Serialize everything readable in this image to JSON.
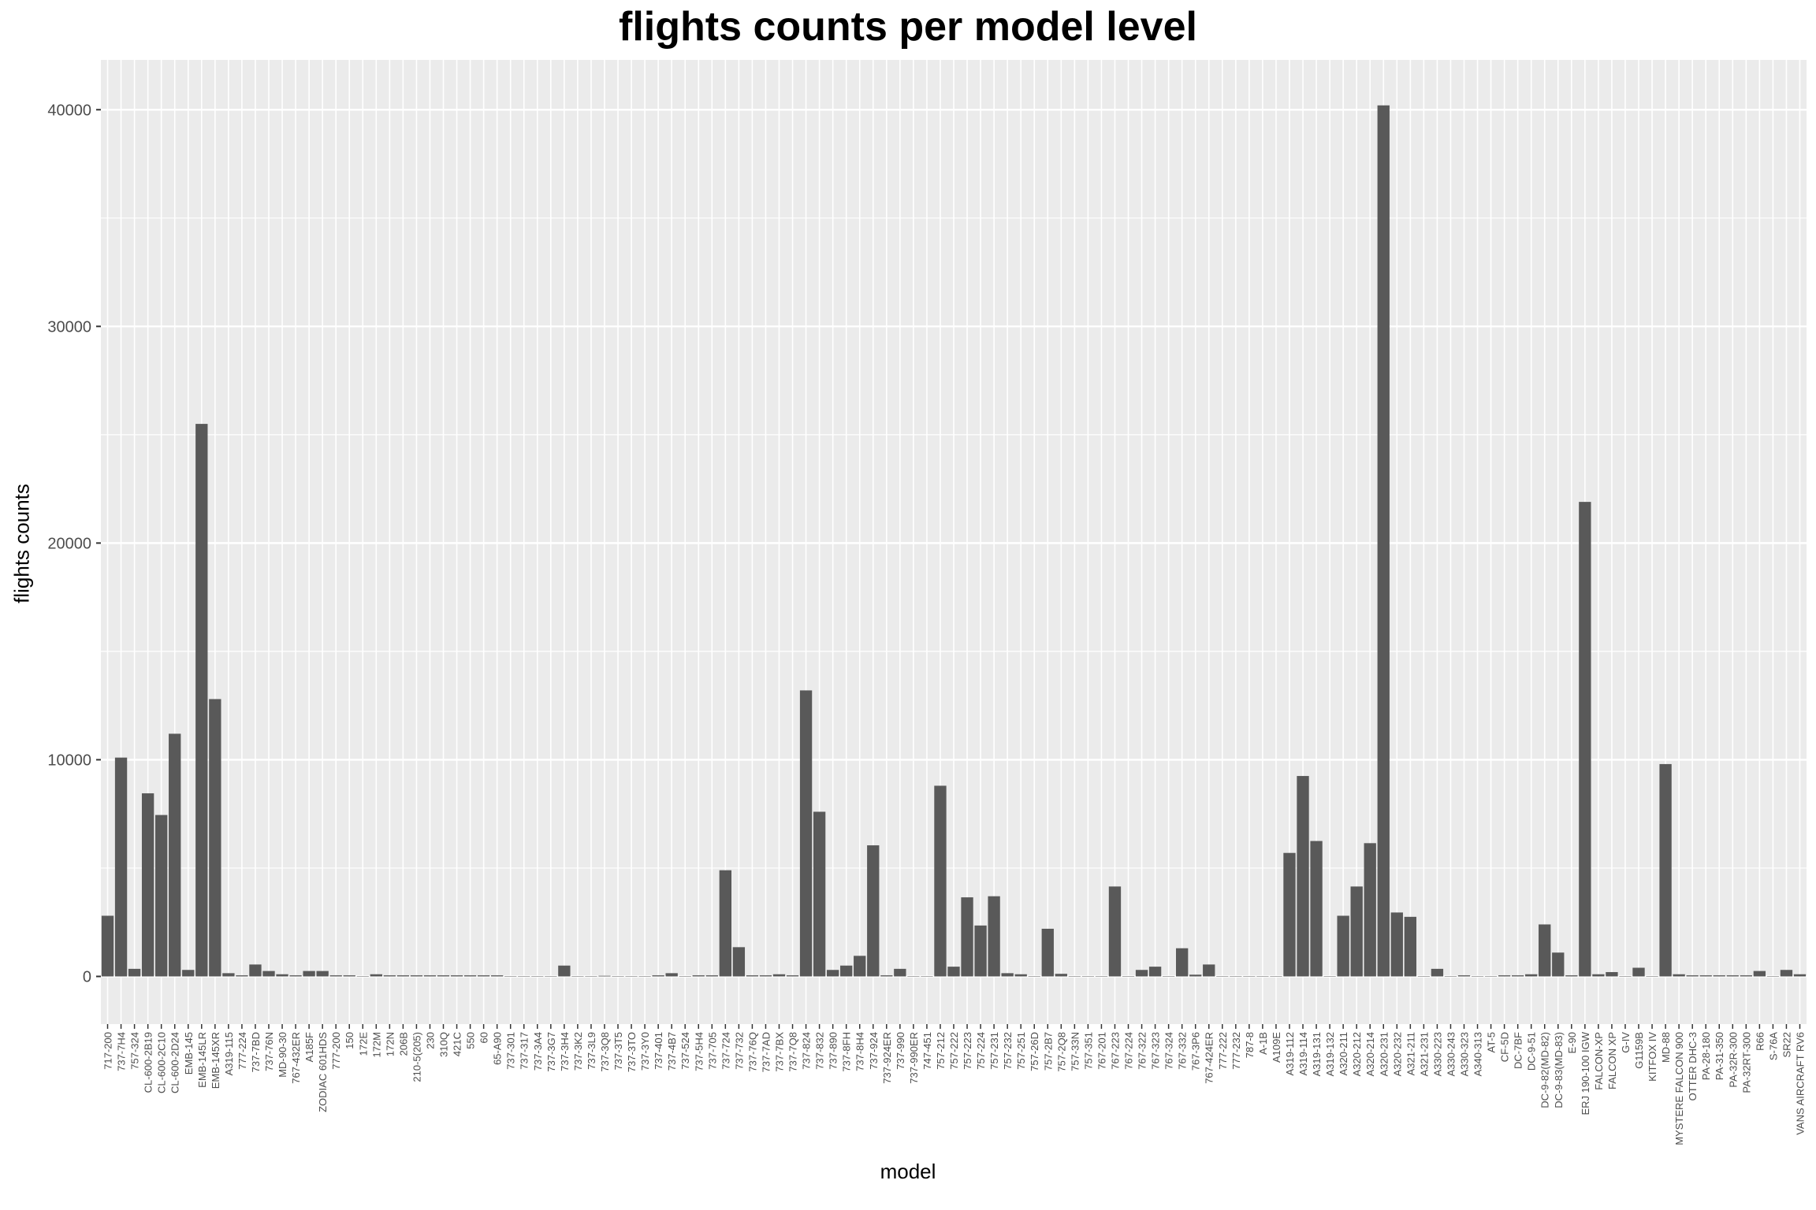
{
  "chart_data": {
    "type": "bar",
    "title": "flights counts per model level",
    "xlabel": "model",
    "ylabel": "flights counts",
    "ylim": [
      -2200,
      42300
    ],
    "yticks": [
      0,
      10000,
      20000,
      30000,
      40000
    ],
    "grid": true,
    "bar_color": "#595959",
    "panel_color": "#EBEBEB",
    "categories": [
      "717-200",
      "737-7H4",
      "757-324",
      "CL-600-2B19",
      "CL-600-2C10",
      "CL-600-2D24",
      "EMB-145",
      "EMB-145LR",
      "EMB-145XR",
      "A319-115",
      "777-224",
      "737-7BD",
      "737-76N",
      "MD-90-30",
      "767-432ER",
      "A185F",
      "ZODIAC 601HDS",
      "777-200",
      "150",
      "172E",
      "172M",
      "172N",
      "206B",
      "210-5(205)",
      "230",
      "310Q",
      "421C",
      "550",
      "60",
      "65-A90",
      "737-301",
      "737-317",
      "737-3A4",
      "737-3G7",
      "737-3H4",
      "737-3K2",
      "737-3L9",
      "737-3Q8",
      "737-3T5",
      "737-3TO",
      "737-3Y0",
      "737-401",
      "737-4B7",
      "737-524",
      "737-5H4",
      "737-705",
      "737-724",
      "737-732",
      "737-76Q",
      "737-7AD",
      "737-7BX",
      "737-7Q8",
      "737-824",
      "737-832",
      "737-890",
      "737-8FH",
      "737-8H4",
      "737-924",
      "737-924ER",
      "737-990",
      "737-990ER",
      "747-451",
      "757-212",
      "757-222",
      "757-223",
      "757-224",
      "757-231",
      "757-232",
      "757-251",
      "757-26D",
      "757-2B7",
      "757-2Q8",
      "757-33N",
      "757-351",
      "767-201",
      "767-223",
      "767-224",
      "767-322",
      "767-323",
      "767-324",
      "767-332",
      "767-3P6",
      "767-424ER",
      "777-222",
      "777-232",
      "787-8",
      "A-1B",
      "A109E",
      "A319-112",
      "A319-114",
      "A319-131",
      "A319-132",
      "A320-211",
      "A320-212",
      "A320-214",
      "A320-231",
      "A320-232",
      "A321-211",
      "A321-231",
      "A330-223",
      "A330-243",
      "A330-323",
      "A340-313",
      "AT-5",
      "CF-5D",
      "DC-7BF",
      "DC-9-51",
      "DC-9-82(MD-82)",
      "DC-9-83(MD-83)",
      "E-90",
      "ERJ 190-100 IGW",
      "FALCON-XP",
      "FALCON XP",
      "G-IV",
      "G1159B",
      "KITFOX IV",
      "MD-88",
      "MYSTERE FALCON 900",
      "OTTER DHC-3",
      "PA-28-180",
      "PA-31-350",
      "PA-32R-300",
      "PA-32RT-300",
      "R66",
      "S-76A",
      "SR22",
      "VANS AIRCRAFT RV6"
    ],
    "values": [
      2800,
      10100,
      350,
      8450,
      7450,
      11200,
      300,
      25500,
      12800,
      150,
      50,
      550,
      250,
      100,
      50,
      250,
      250,
      50,
      50,
      10,
      100,
      50,
      50,
      50,
      50,
      50,
      50,
      50,
      50,
      50,
      10,
      10,
      10,
      10,
      500,
      10,
      10,
      30,
      10,
      10,
      10,
      50,
      150,
      10,
      50,
      50,
      4900,
      1350,
      50,
      50,
      100,
      50,
      13200,
      7600,
      300,
      500,
      950,
      6050,
      50,
      350,
      10,
      10,
      8800,
      450,
      3650,
      2350,
      3700,
      150,
      100,
      10,
      2200,
      120,
      10,
      10,
      10,
      4150,
      10,
      300,
      450,
      10,
      1300,
      80,
      550,
      10,
      10,
      10,
      10,
      10,
      5700,
      9250,
      6250,
      10,
      2800,
      4150,
      6150,
      40200,
      2950,
      2750,
      10,
      350,
      10,
      50,
      10,
      10,
      50,
      50,
      100,
      2400,
      1100,
      50,
      21900,
      100,
      200,
      10,
      400,
      10,
      9800,
      100,
      50,
      50,
      50,
      50,
      50,
      250,
      10,
      300,
      100
    ]
  }
}
